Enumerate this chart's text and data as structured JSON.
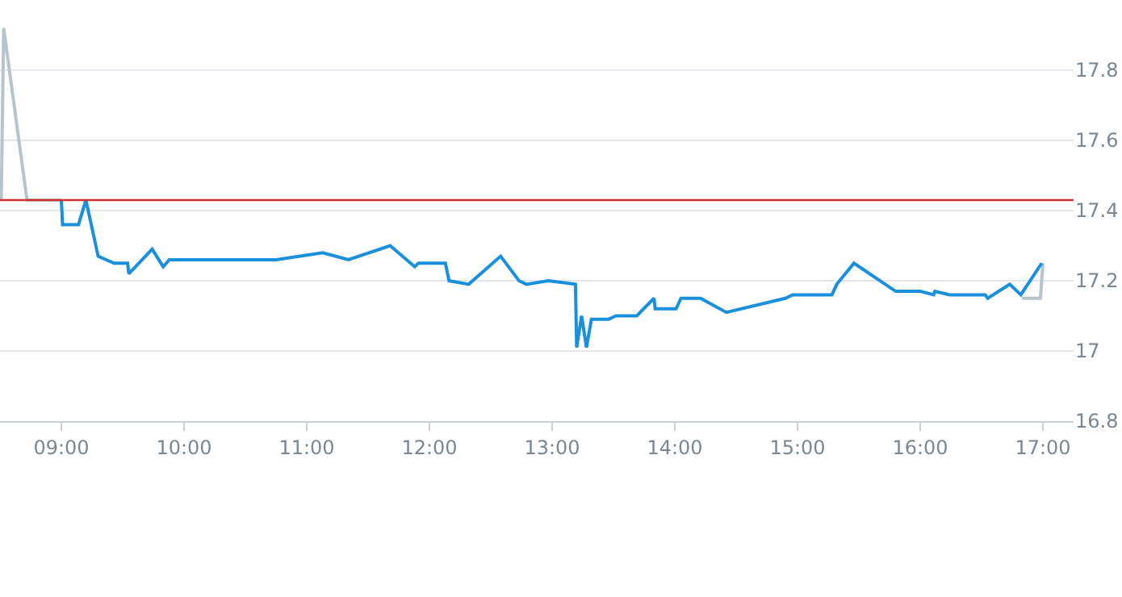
{
  "chart_data": {
    "type": "line",
    "xlim": [
      8.5,
      17.25
    ],
    "ylim": [
      16.8,
      18.0
    ],
    "xticks": [
      {
        "value": 9,
        "label": "09:00"
      },
      {
        "value": 10,
        "label": "10:00"
      },
      {
        "value": 11,
        "label": "11:00"
      },
      {
        "value": 12,
        "label": "12:00"
      },
      {
        "value": 13,
        "label": "13:00"
      },
      {
        "value": 14,
        "label": "14:00"
      },
      {
        "value": 15,
        "label": "15:00"
      },
      {
        "value": 16,
        "label": "16:00"
      },
      {
        "value": 17,
        "label": "17:00"
      }
    ],
    "yticks": [
      16.8,
      {
        "value": 17,
        "label": "17"
      },
      17.2,
      17.4,
      17.6,
      17.8
    ],
    "grid": "y",
    "legend": false,
    "marker": "none",
    "line_style": "solid",
    "ref_lines": [
      {
        "axis": "y",
        "value": 17.43,
        "color": "#d32f2f"
      }
    ],
    "series": [
      {
        "color": "#b8c4cc",
        "x": [
          8.51,
          8.53,
          8.72,
          9.0
        ],
        "values": [
          17.43,
          17.92,
          17.43,
          17.43
        ]
      },
      {
        "color": "#b8c4cc",
        "x": [
          16.83,
          16.98,
          17.0
        ],
        "values": [
          17.15,
          17.15,
          17.25
        ]
      },
      {
        "color": "#1a8fdb",
        "x": [
          9.0,
          9.01,
          9.14,
          9.2,
          9.3,
          9.43,
          9.54,
          9.55,
          9.74,
          9.83,
          9.88,
          10.75,
          11.13,
          11.34,
          11.68,
          11.88,
          11.91,
          12.13,
          12.16,
          12.32,
          12.58,
          12.73,
          12.79,
          12.97,
          13.19,
          13.2,
          13.24,
          13.28,
          13.32,
          13.46,
          13.52,
          13.69,
          13.83,
          13.84,
          14.01,
          14.05,
          14.21,
          14.42,
          14.9,
          14.96,
          15.28,
          15.32,
          15.46,
          15.8,
          16.0,
          16.11,
          16.12,
          16.24,
          16.53,
          16.55,
          16.73,
          16.82,
          16.99
        ],
        "values": [
          17.43,
          17.36,
          17.36,
          17.43,
          17.27,
          17.25,
          17.25,
          17.22,
          17.29,
          17.24,
          17.26,
          17.26,
          17.28,
          17.26,
          17.3,
          17.24,
          17.25,
          17.25,
          17.2,
          17.19,
          17.27,
          17.2,
          17.19,
          17.2,
          17.19,
          17.01,
          17.1,
          17.01,
          17.09,
          17.09,
          17.1,
          17.1,
          17.15,
          17.12,
          17.12,
          17.15,
          17.15,
          17.11,
          17.15,
          17.16,
          17.16,
          17.19,
          17.25,
          17.17,
          17.17,
          17.16,
          17.17,
          17.16,
          17.16,
          17.15,
          17.19,
          17.16,
          17.25
        ]
      }
    ]
  }
}
